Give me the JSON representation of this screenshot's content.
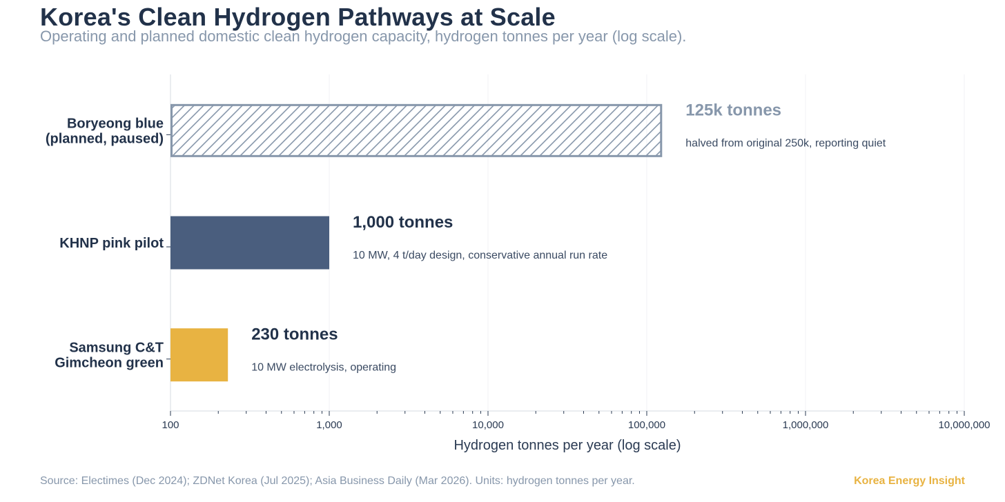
{
  "header": {
    "title": "Korea's Clean Hydrogen Pathways at Scale",
    "subtitle": "Operating and planned domestic clean hydrogen capacity, hydrogen tonnes per year (log scale)."
  },
  "footer": {
    "source": "Source: Electimes (Dec 2024); ZDNet Korea (Jul 2025); Asia Business Daily (Mar 2026). Units: hydrogen tonnes per year.",
    "brand": "Korea Energy Insight"
  },
  "chart_data": {
    "type": "bar",
    "orientation": "horizontal",
    "xscale": "log",
    "xlim": [
      100,
      10000000
    ],
    "xlabel": "Hydrogen tonnes per year (log scale)",
    "xticks": [
      100,
      1000,
      10000,
      100000,
      1000000,
      10000000
    ],
    "xtick_labels": [
      "100",
      "1,000",
      "10,000",
      "100,000",
      "1,000,000",
      "10,000,000"
    ],
    "grid": "vertical, major ticks",
    "bars": [
      {
        "category_lines": [
          "Boryeong blue",
          "(planned, paused)"
        ],
        "value": 125000,
        "value_label": "125k tonnes",
        "note": "halved from original 250k, reporting quiet",
        "color": "#8797ab",
        "style": "hatched-outline"
      },
      {
        "category_lines": [
          "KHNP pink pilot"
        ],
        "value": 1000,
        "value_label": "1,000 tonnes",
        "note": "10 MW, 4 t/day design, conservative annual run rate",
        "color": "#4a5e7e",
        "style": "solid"
      },
      {
        "category_lines": [
          "Samsung C&T",
          "Gimcheon green"
        ],
        "value": 230,
        "value_label": "230 tonnes",
        "note": "10 MW electrolysis, operating",
        "color": "#e8b342",
        "style": "solid"
      }
    ]
  }
}
